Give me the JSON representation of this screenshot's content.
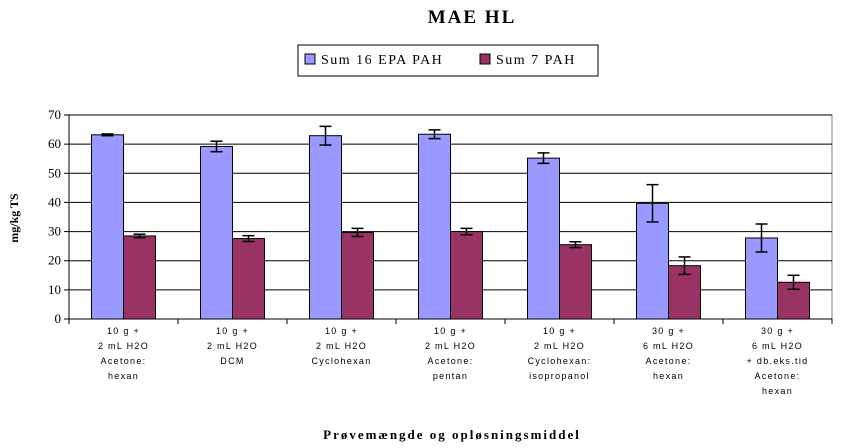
{
  "chart_data": {
    "type": "bar",
    "title": "MAE HL",
    "xlabel": "Prøvemængde og opløsningsmiddel",
    "ylabel": "mg/kg TS",
    "ylim": [
      0,
      70
    ],
    "yticks": [
      0,
      10,
      20,
      30,
      40,
      50,
      60,
      70
    ],
    "grid": true,
    "legend": "top-center",
    "categories": [
      [
        "10 g +",
        "2 mL H2O",
        "Acetone:",
        "hexan"
      ],
      [
        "10 g +",
        "2 mL H2O",
        "DCM"
      ],
      [
        "10 g +",
        "2 mL H2O",
        "Cyclohexan"
      ],
      [
        "10 g +",
        "2 mL H2O",
        "Acetone:",
        "pentan"
      ],
      [
        "10 g +",
        "2 mL H2O",
        "Cyclohexan:",
        "isopropanol"
      ],
      [
        "30 g +",
        "6 mL H2O",
        "Acetone:",
        "hexan"
      ],
      [
        "30 g +",
        "6 mL H2O",
        "+ db.eks.tid",
        "Acetone:",
        "hexan"
      ]
    ],
    "series": [
      {
        "name": "Sum 16 EPA PAH",
        "color": "#9999ff",
        "values": [
          63.2,
          59.2,
          62.9,
          63.4,
          55.2,
          39.7,
          27.8
        ],
        "errors": [
          0.3,
          1.8,
          3.2,
          1.5,
          1.8,
          6.4,
          4.8
        ]
      },
      {
        "name": "Sum 7 PAH",
        "color": "#993366",
        "values": [
          28.5,
          27.6,
          29.7,
          30.0,
          25.5,
          18.3,
          12.6
        ],
        "errors": [
          0.6,
          1.0,
          1.4,
          1.1,
          1.0,
          3.0,
          2.4
        ]
      }
    ]
  }
}
